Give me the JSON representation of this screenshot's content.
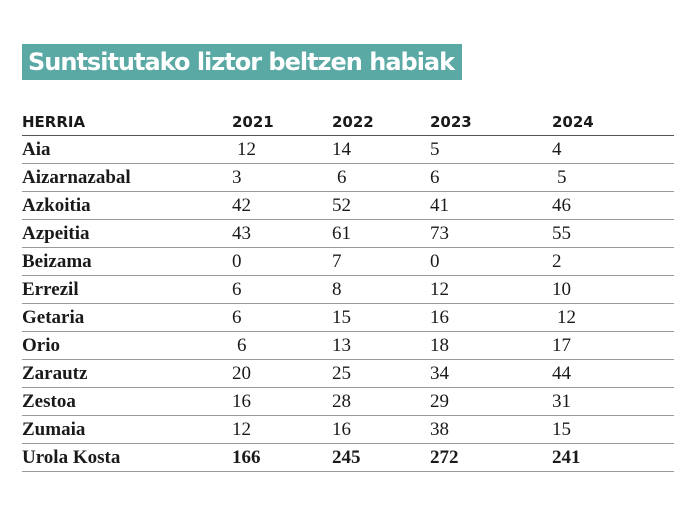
{
  "title": "Suntsitutako liztor beltzen habiak",
  "table": {
    "headers": [
      "HERRIA",
      "2021",
      "2022",
      "2023",
      "2024"
    ],
    "rows": [
      {
        "name": "Aia",
        "values": [
          "12",
          "14",
          "5",
          "4"
        ]
      },
      {
        "name": "Aizarnazabal",
        "values": [
          "3",
          "6",
          "6",
          "5"
        ]
      },
      {
        "name": "Azkoitia",
        "values": [
          "42",
          "52",
          "41",
          "46"
        ]
      },
      {
        "name": "Azpeitia",
        "values": [
          "43",
          "61",
          "73",
          "55"
        ]
      },
      {
        "name": "Beizama",
        "values": [
          "0",
          "7",
          "0",
          "2"
        ]
      },
      {
        "name": "Errezil",
        "values": [
          "6",
          "8",
          "12",
          "10"
        ]
      },
      {
        "name": "Getaria",
        "values": [
          "6",
          "15",
          "16",
          "12"
        ]
      },
      {
        "name": "Orio",
        "values": [
          "6",
          "13",
          "18",
          "17"
        ]
      },
      {
        "name": "Zarautz",
        "values": [
          "20",
          "25",
          "34",
          "44"
        ]
      },
      {
        "name": "Zestoa",
        "values": [
          "16",
          "28",
          "29",
          "31"
        ]
      },
      {
        "name": "Zumaia",
        "values": [
          "12",
          "16",
          "38",
          "15"
        ]
      }
    ],
    "total": {
      "name": "Urola Kosta",
      "values": [
        "166",
        "245",
        "272",
        "241"
      ]
    }
  },
  "colors": {
    "title_background": "#5aa9a4",
    "title_text": "#ffffff"
  }
}
